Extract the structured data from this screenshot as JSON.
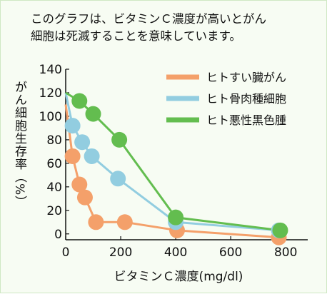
{
  "caption": {
    "line1": "このグラフは、ビタミンＣ濃度が高いとがん",
    "line2": "細胞は死滅することを意味しています。"
  },
  "chart_data": {
    "type": "line",
    "xlabel": "ビタミンＣ濃度(mg/dl)",
    "ylabel": "がん細胞生存率（%）",
    "xlim": [
      0,
      880
    ],
    "ylim": [
      -5,
      140
    ],
    "xticks": [
      0,
      200,
      400,
      600,
      800
    ],
    "yticks": [
      0,
      20,
      40,
      60,
      80,
      100,
      120,
      140
    ],
    "grid": false,
    "legend_position": "top-right",
    "series": [
      {
        "name": "ヒトすい臓がん",
        "color": "#f4a06a",
        "x": [
          0,
          25,
          50,
          70,
          110,
          215,
          405,
          775
        ],
        "y": [
          110,
          66,
          42,
          31,
          10,
          10,
          3,
          -3
        ]
      },
      {
        "name": "ヒト骨肉種細胞",
        "color": "#92cde0",
        "x": [
          0,
          25,
          60,
          95,
          190,
          400,
          775
        ],
        "y": [
          120,
          92,
          78,
          66,
          47,
          10,
          3
        ]
      },
      {
        "name": "ヒト悪性黒色腫",
        "color": "#63bd4f",
        "x": [
          0,
          50,
          100,
          195,
          400,
          780
        ],
        "y": [
          120,
          113,
          102,
          80,
          14,
          3
        ]
      }
    ]
  }
}
